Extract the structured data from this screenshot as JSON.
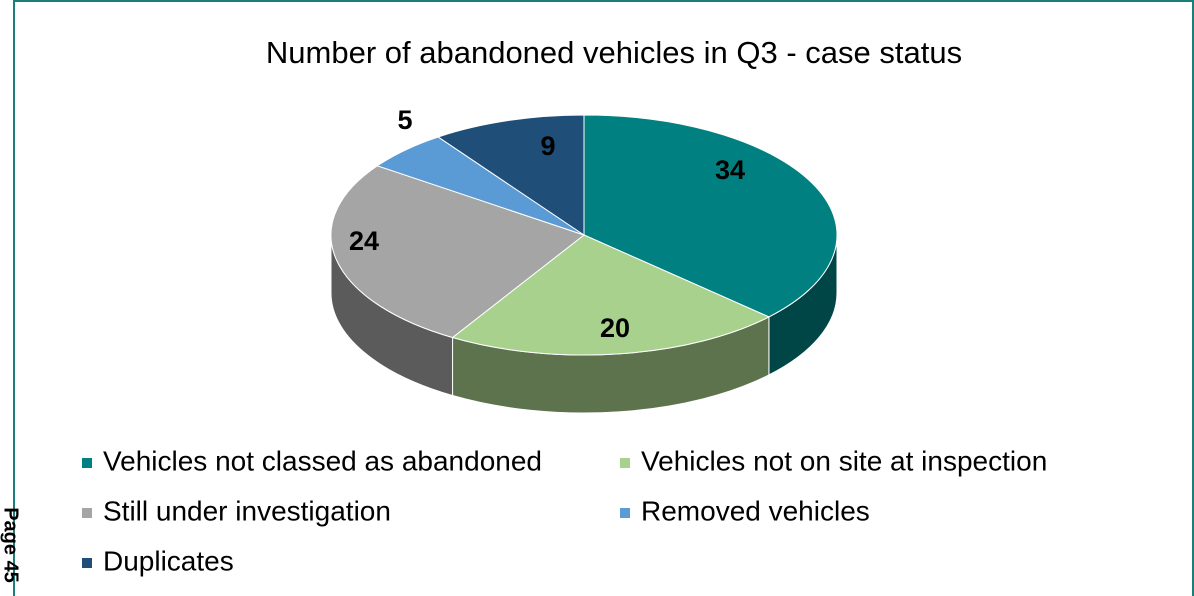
{
  "chart_data": {
    "type": "pie",
    "title": "Number of abandoned vehicles in Q3 - case status",
    "categories": [
      "Vehicles not classed as abandoned",
      "Vehicles not on site at inspection",
      "Still under investigation",
      "Removed vehicles",
      "Duplicates"
    ],
    "values": [
      34,
      20,
      24,
      5,
      9
    ],
    "colors": [
      "#008080",
      "#a9d18e",
      "#a5a5a5",
      "#5b9bd5",
      "#1f4e79"
    ],
    "legend": "bottom"
  },
  "page_label": "Page 45"
}
